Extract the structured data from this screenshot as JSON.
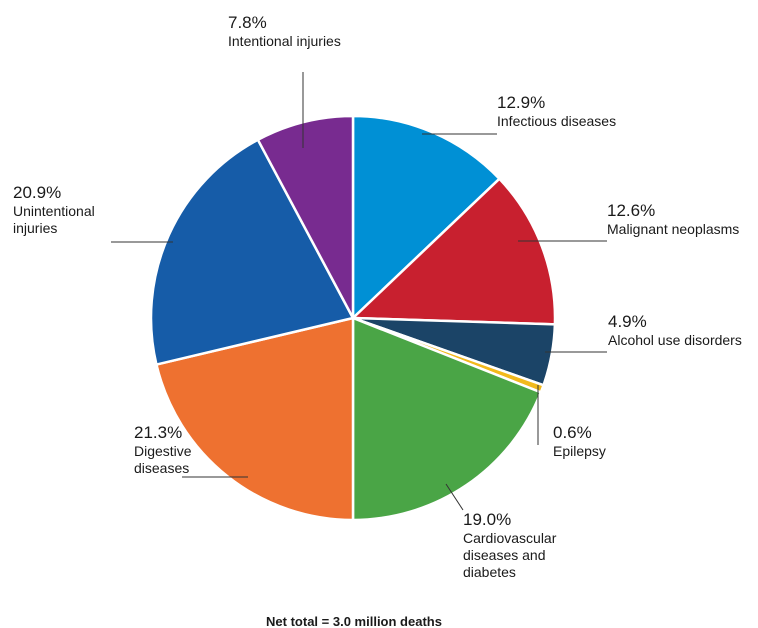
{
  "chart_data": {
    "type": "pie",
    "start_angle_deg": 0,
    "direction": "clockwise",
    "slices": [
      {
        "label": [
          "Infectious diseases"
        ],
        "value": 12.9,
        "pct_text": "12.9%",
        "color": "#0090d5"
      },
      {
        "label": [
          "Malignant neoplasms"
        ],
        "value": 12.6,
        "pct_text": "12.6%",
        "color": "#c8202f"
      },
      {
        "label": [
          "Alcohol use disorders"
        ],
        "value": 4.9,
        "pct_text": "4.9%",
        "color": "#1b4467"
      },
      {
        "label": [
          "Epilepsy"
        ],
        "value": 0.6,
        "pct_text": "0.6%",
        "color": "#f2b91c"
      },
      {
        "label": [
          "Cardiovascular",
          "diseases and",
          "diabetes"
        ],
        "value": 19.0,
        "pct_text": "19.0%",
        "color": "#4aa546"
      },
      {
        "label": [
          "Digestive",
          "diseases"
        ],
        "value": 21.3,
        "pct_text": "21.3%",
        "color": "#ee7130"
      },
      {
        "label": [
          "Unintentional",
          "injuries"
        ],
        "value": 20.9,
        "pct_text": "20.9%",
        "color": "#165ca8"
      },
      {
        "label": [
          "Intentional injuries"
        ],
        "value": 7.8,
        "pct_text": "7.8%",
        "color": "#782b90"
      }
    ],
    "footnote": "Net total = 3.0 million deaths"
  }
}
